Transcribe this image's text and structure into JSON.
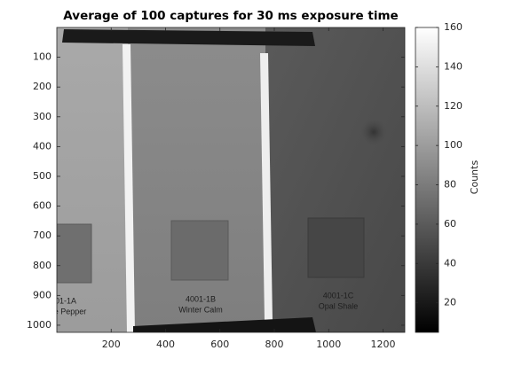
{
  "chart_data": {
    "type": "image",
    "title": "Average of 100 captures for 30 ms exposure time",
    "xlim": [
      0,
      1280
    ],
    "xticks": [
      200,
      400,
      600,
      800,
      1000,
      1200
    ],
    "ylim": [
      0,
      1024
    ],
    "yticks": [
      100,
      200,
      300,
      400,
      500,
      600,
      700,
      800,
      900,
      1000
    ],
    "y_reversed": true,
    "colorbar": {
      "label": "Counts",
      "lim": [
        5,
        160
      ],
      "ticks": [
        20,
        40,
        60,
        80,
        100,
        120,
        140,
        160
      ]
    },
    "annotations": [
      "01-1A",
      "e Pepper",
      "4001-1B",
      "Winter Calm",
      "4001-1C",
      "Opal Shale"
    ]
  }
}
